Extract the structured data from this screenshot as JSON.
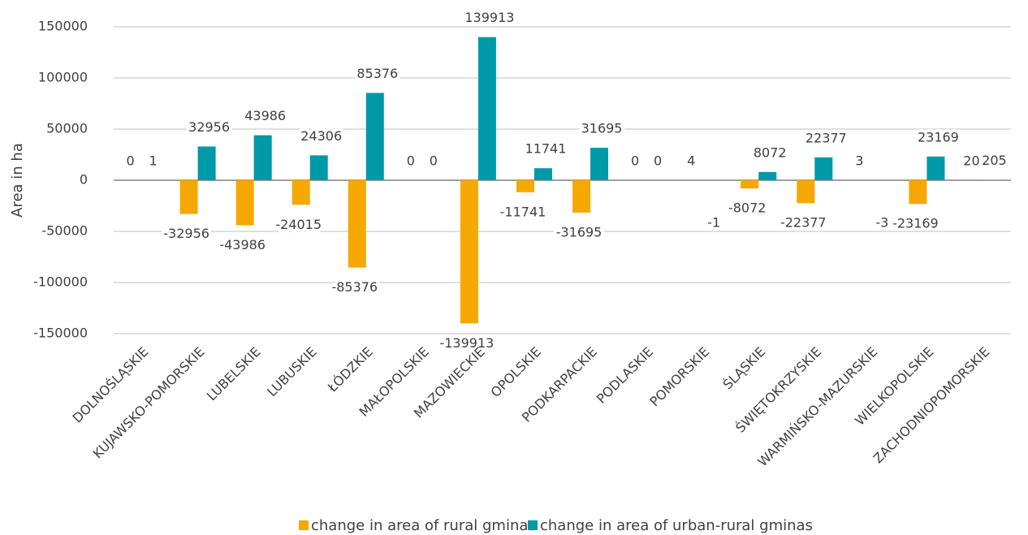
{
  "chart_data": {
    "type": "bar",
    "y_label": "Area in ha",
    "categories": [
      "DOLNOŚLĄSKIE",
      "KUJAWSKO-POMORSKIE",
      "LUBELSKIE",
      "LUBUSKIE",
      "ŁÓDZKIE",
      "MAŁOPOLSKIE",
      "MAZOWIECKIE",
      "OPOLSKIE",
      "PODKARPACKIE",
      "PODLASKIE",
      "POMORSKIE",
      "ŚLĄSKIE",
      "ŚWIĘTOKRZYSKIE",
      "WARMIŃSKO-MAZURSKIE",
      "WIELKOPOLSKIE",
      "ZACHODNIOPOMORSKIE"
    ],
    "series": [
      {
        "name": "change in area of rural gminas",
        "color": "#f5a800",
        "values": [
          0,
          -32956,
          -43986,
          -24015,
          -85376,
          0,
          -139913,
          -11741,
          -31695,
          0,
          4,
          -8072,
          -22377,
          3,
          -23169,
          20
        ]
      },
      {
        "name": "change in area of urban-rural gminas",
        "color": "#0099a8",
        "values": [
          1,
          32956,
          43986,
          24306,
          85376,
          0,
          139913,
          11741,
          31695,
          0,
          -1,
          8072,
          22377,
          -3,
          23169,
          205
        ]
      }
    ],
    "ylim": [
      -150000,
      150000
    ],
    "yticks": [
      -150000,
      -100000,
      -50000,
      0,
      50000,
      100000,
      150000
    ],
    "grid": true,
    "legend": "bottom"
  }
}
